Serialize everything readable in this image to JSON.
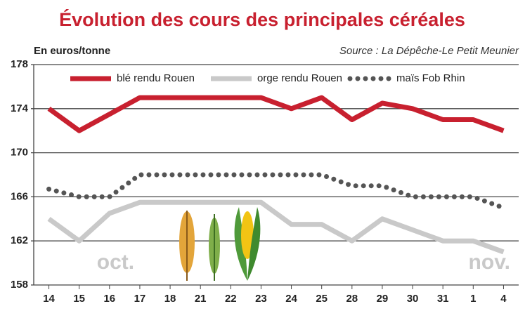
{
  "chart_data": {
    "type": "line",
    "title": "Évolution des cours des principales céréales",
    "y_label": "En euros/tonne",
    "source": "Source : La Dépêche-Le Petit Meunier",
    "annotations": [
      "oct.",
      "nov."
    ],
    "categories": [
      "14",
      "15",
      "16",
      "17",
      "18",
      "21",
      "22",
      "23",
      "24",
      "25",
      "28",
      "29",
      "30",
      "31",
      "1",
      "4"
    ],
    "series": [
      {
        "name": "blé rendu Rouen",
        "color": "#c8202f",
        "style": "solid",
        "values": [
          174,
          172,
          173.5,
          175,
          175,
          175,
          175,
          175,
          174,
          175,
          173,
          174.5,
          174,
          173,
          173,
          172
        ]
      },
      {
        "name": "orge rendu Rouen",
        "color": "#c9c9c9",
        "style": "solid",
        "values": [
          164,
          162,
          164.5,
          165.5,
          165.5,
          165.5,
          165.5,
          165.5,
          163.5,
          163.5,
          162,
          164,
          163,
          162,
          162,
          161
        ]
      },
      {
        "name": "maïs Fob Rhin",
        "color": "#555555",
        "style": "dotted",
        "values": [
          166.7,
          166,
          166,
          168,
          168,
          168,
          168,
          168,
          168,
          168,
          167,
          167,
          166,
          166,
          166,
          165
        ]
      }
    ],
    "ylim": [
      158,
      178
    ],
    "yticks": [
      158,
      162,
      166,
      170,
      174,
      178
    ],
    "grid": true,
    "legend": "top"
  }
}
